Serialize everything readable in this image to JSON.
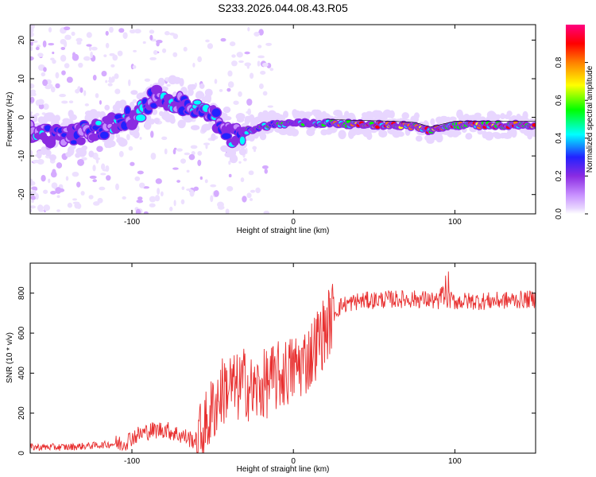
{
  "title": "S233.2026.044.08.43.R05",
  "chart_data": [
    {
      "type": "heatmap",
      "xlabel": "Height of straight line (km)",
      "ylabel": "Frequency (Hz)",
      "xlim": [
        -163,
        150
      ],
      "ylim": [
        -25,
        24
      ],
      "xticks": [
        -100,
        0,
        100
      ],
      "yticks": [
        -20,
        -10,
        0,
        10,
        20
      ],
      "colorbar": {
        "label": "Normalized spectral amplitude",
        "range": [
          0,
          1
        ],
        "ticks": [
          0.0,
          0.2,
          0.4,
          0.6,
          0.8
        ],
        "colors": [
          "#ffffff",
          "#e8d6ff",
          "#c890ff",
          "#8a2be2",
          "#2222ff",
          "#00ffff",
          "#00ff00",
          "#ffff00",
          "#ff8000",
          "#ff0000",
          "#ff0080"
        ]
      },
      "frequency_track": [
        {
          "x": -163,
          "y": -4
        },
        {
          "x": -140,
          "y": -5
        },
        {
          "x": -120,
          "y": -3
        },
        {
          "x": -100,
          "y": 0
        },
        {
          "x": -85,
          "y": 5
        },
        {
          "x": -70,
          "y": 4
        },
        {
          "x": -55,
          "y": 2
        },
        {
          "x": -45,
          "y": -2
        },
        {
          "x": -38,
          "y": -5
        },
        {
          "x": -25,
          "y": -3
        },
        {
          "x": -15,
          "y": -2
        },
        {
          "x": 0,
          "y": -1.5
        },
        {
          "x": 20,
          "y": -1.5
        },
        {
          "x": 40,
          "y": -1.8
        },
        {
          "x": 60,
          "y": -2
        },
        {
          "x": 75,
          "y": -2.3
        },
        {
          "x": 85,
          "y": -3.5
        },
        {
          "x": 100,
          "y": -2
        },
        {
          "x": 120,
          "y": -2
        },
        {
          "x": 150,
          "y": -2
        }
      ]
    },
    {
      "type": "line",
      "xlabel": "Height of straight line (km)",
      "ylabel": "SNR (10 * v/v)",
      "xlim": [
        -163,
        150
      ],
      "ylim": [
        0,
        950
      ],
      "xticks": [
        -100,
        0,
        100
      ],
      "yticks": [
        0,
        200,
        400,
        600,
        800
      ],
      "color": "#e83030",
      "series": [
        {
          "name": "SNR",
          "x": [
            -163,
            -140,
            -120,
            -105,
            -100,
            -90,
            -80,
            -70,
            -60,
            -55,
            -50,
            -45,
            -40,
            -35,
            -30,
            -25,
            -20,
            -15,
            -10,
            -5,
            0,
            5,
            10,
            15,
            20,
            25,
            30,
            40,
            60,
            80,
            90,
            92,
            95,
            100,
            120,
            150
          ],
          "values": [
            30,
            30,
            40,
            50,
            80,
            110,
            120,
            90,
            60,
            120,
            220,
            300,
            340,
            320,
            360,
            300,
            330,
            360,
            380,
            400,
            420,
            450,
            480,
            560,
            620,
            700,
            740,
            760,
            770,
            770,
            760,
            800,
            770,
            760,
            760,
            770
          ]
        }
      ]
    }
  ]
}
